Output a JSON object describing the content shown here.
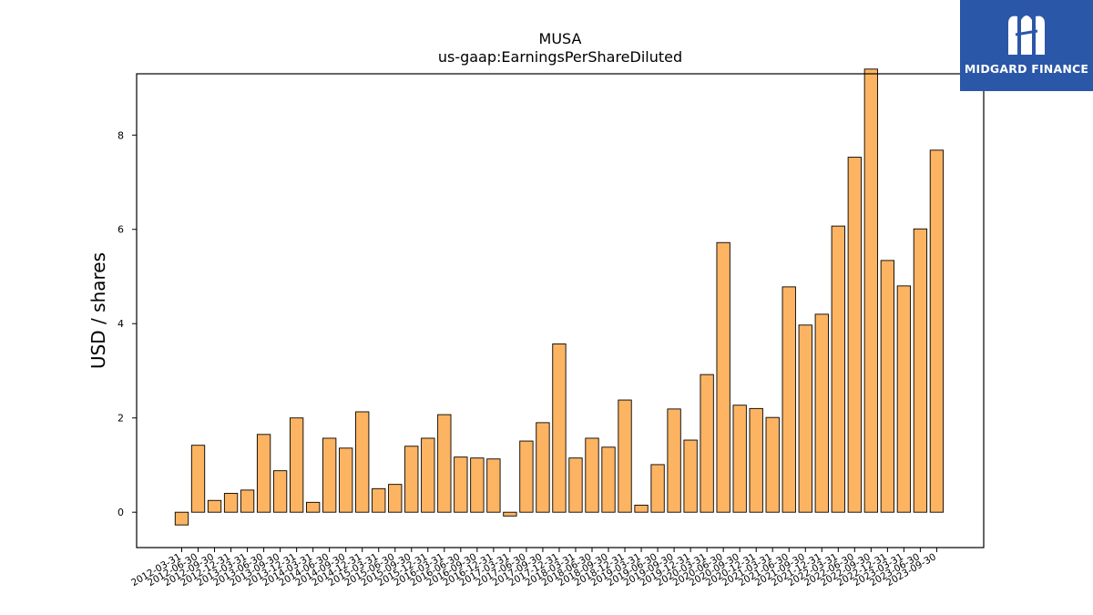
{
  "brand": {
    "name": "MIDGARD FINANCE",
    "logo_icon": "midgard-m-logo-icon",
    "bg_color": "#2b57a8"
  },
  "chart_data": {
    "type": "bar",
    "title": "MUSA",
    "subtitle": "us-gaap:EarningsPerShareDiluted",
    "xlabel": "",
    "ylabel": "USD / shares",
    "ylim": [
      -0.75,
      9.3
    ],
    "yticks": [
      0,
      2,
      4,
      6,
      8
    ],
    "grid": false,
    "bar_color": "#fdb462",
    "edge_color": "#000000",
    "categories": [
      "2012-03-31",
      "2012-06-30",
      "2012-09-30",
      "2012-12-31",
      "2013-03-31",
      "2013-06-30",
      "2013-09-30",
      "2013-12-31",
      "2014-03-31",
      "2014-06-30",
      "2014-09-30",
      "2014-12-31",
      "2015-03-31",
      "2015-06-30",
      "2015-09-30",
      "2015-12-31",
      "2016-03-31",
      "2016-06-30",
      "2016-09-30",
      "2016-12-31",
      "2017-03-31",
      "2017-06-30",
      "2017-09-30",
      "2017-12-31",
      "2018-03-31",
      "2018-06-30",
      "2018-09-30",
      "2018-12-31",
      "2019-03-31",
      "2019-06-30",
      "2019-09-30",
      "2019-12-31",
      "2020-03-31",
      "2020-06-30",
      "2020-09-30",
      "2020-12-31",
      "2021-03-31",
      "2021-06-30",
      "2021-09-30",
      "2021-12-31",
      "2022-03-31",
      "2022-06-30",
      "2022-09-30",
      "2022-12-31",
      "2023-03-31",
      "2023-06-30",
      "2023-09-30"
    ],
    "values": [
      -0.27,
      1.42,
      0.25,
      0.4,
      0.47,
      1.65,
      0.88,
      2.0,
      0.21,
      1.57,
      1.36,
      2.13,
      0.5,
      0.59,
      1.4,
      1.57,
      2.07,
      1.17,
      1.15,
      1.13,
      -0.08,
      1.51,
      1.9,
      3.57,
      1.15,
      1.57,
      1.38,
      2.38,
      0.15,
      1.01,
      2.19,
      1.53,
      2.92,
      5.72,
      2.27,
      2.2,
      2.01,
      4.78,
      3.97,
      4.2,
      6.07,
      7.53,
      9.4,
      5.34,
      4.8,
      6.01,
      7.68
    ]
  }
}
